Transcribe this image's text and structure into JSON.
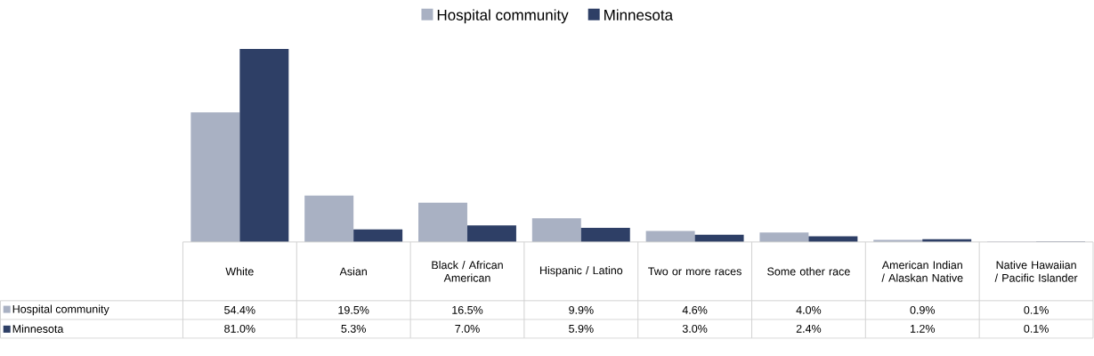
{
  "chart_data": {
    "type": "bar",
    "categories": [
      "White",
      "Asian",
      "Black / African American",
      "Hispanic / Latino",
      "Two or more races",
      "Some other race",
      "American Indian / Alaskan Native",
      "Native Hawaiian / Pacific Islander"
    ],
    "series": [
      {
        "name": "Hospital community",
        "color": "#a9b1c3",
        "values": [
          54.4,
          19.5,
          16.5,
          9.9,
          4.6,
          4.0,
          0.9,
          0.1
        ],
        "value_labels": [
          "54.4%",
          "19.5%",
          "16.5%",
          "9.9%",
          "4.6%",
          "4.0%",
          "0.9%",
          "0.1%"
        ]
      },
      {
        "name": "Minnesota",
        "color": "#2e3f66",
        "values": [
          81.0,
          5.3,
          7.0,
          5.9,
          3.0,
          2.4,
          1.2,
          0.1
        ],
        "value_labels": [
          "81.0%",
          "5.3%",
          "7.0%",
          "5.9%",
          "3.0%",
          "2.4%",
          "1.2%",
          "0.1%"
        ]
      }
    ],
    "legend": "top"
  }
}
